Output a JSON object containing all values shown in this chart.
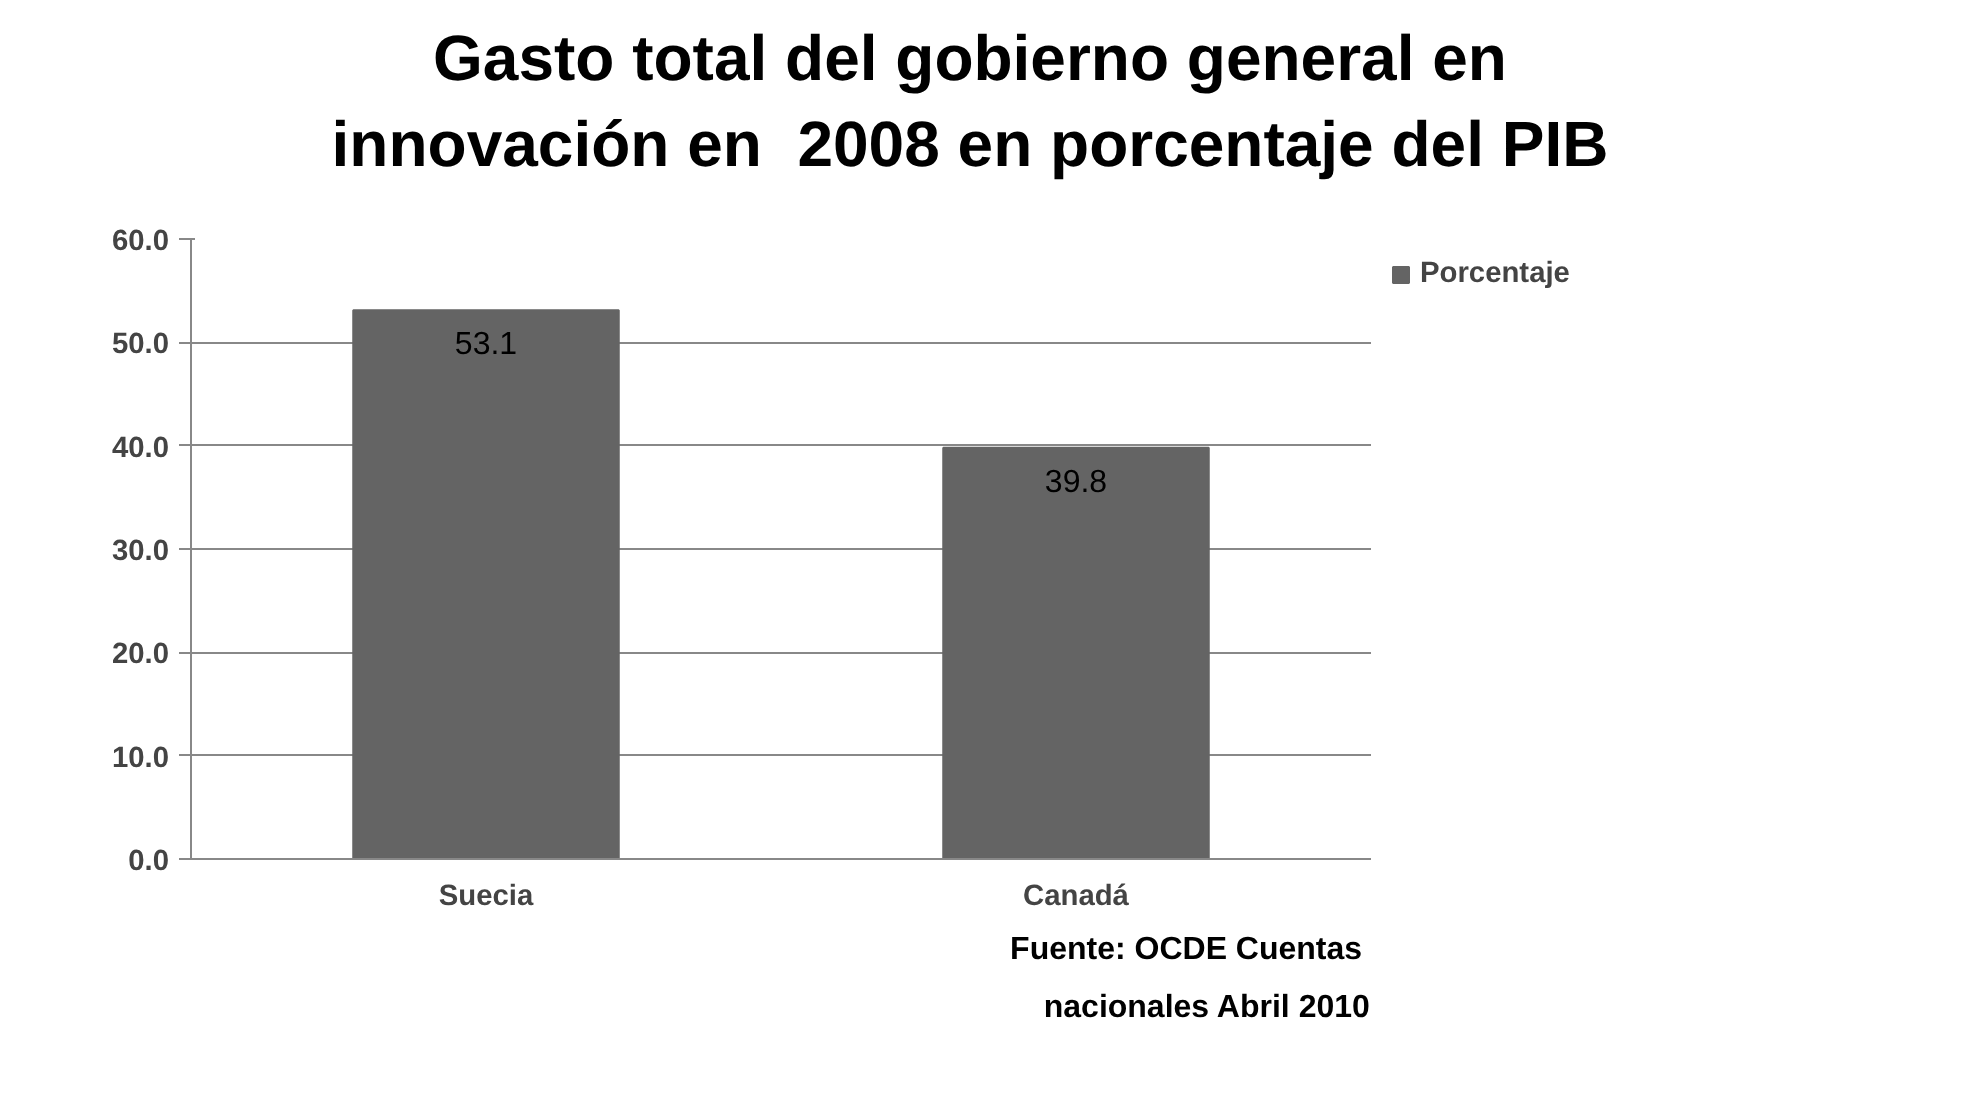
{
  "chart_data": {
    "type": "bar",
    "title": "Gasto total del gobierno general en innovación en  2008 en porcentaje del PIB",
    "categories": [
      "Suecia",
      "Canadá"
    ],
    "series": [
      {
        "name": "Porcentaje",
        "color": "#646464",
        "values": [
          53.1,
          39.8
        ]
      }
    ],
    "ylim": [
      0,
      60
    ],
    "yticks": [
      {
        "value": 0,
        "label": "0.0"
      },
      {
        "value": 10,
        "label": "10.0"
      },
      {
        "value": 20,
        "label": "20.0"
      },
      {
        "value": 30,
        "label": "30.0"
      },
      {
        "value": 40,
        "label": "40.0"
      },
      {
        "value": 50,
        "label": "50.0"
      },
      {
        "value": 60,
        "label": "60.0"
      }
    ],
    "grid": "y",
    "legend": "top right",
    "data_labels": true,
    "annotations": [
      "Fuente: OCDE  Cuentas nacionales Abril 2010"
    ]
  }
}
